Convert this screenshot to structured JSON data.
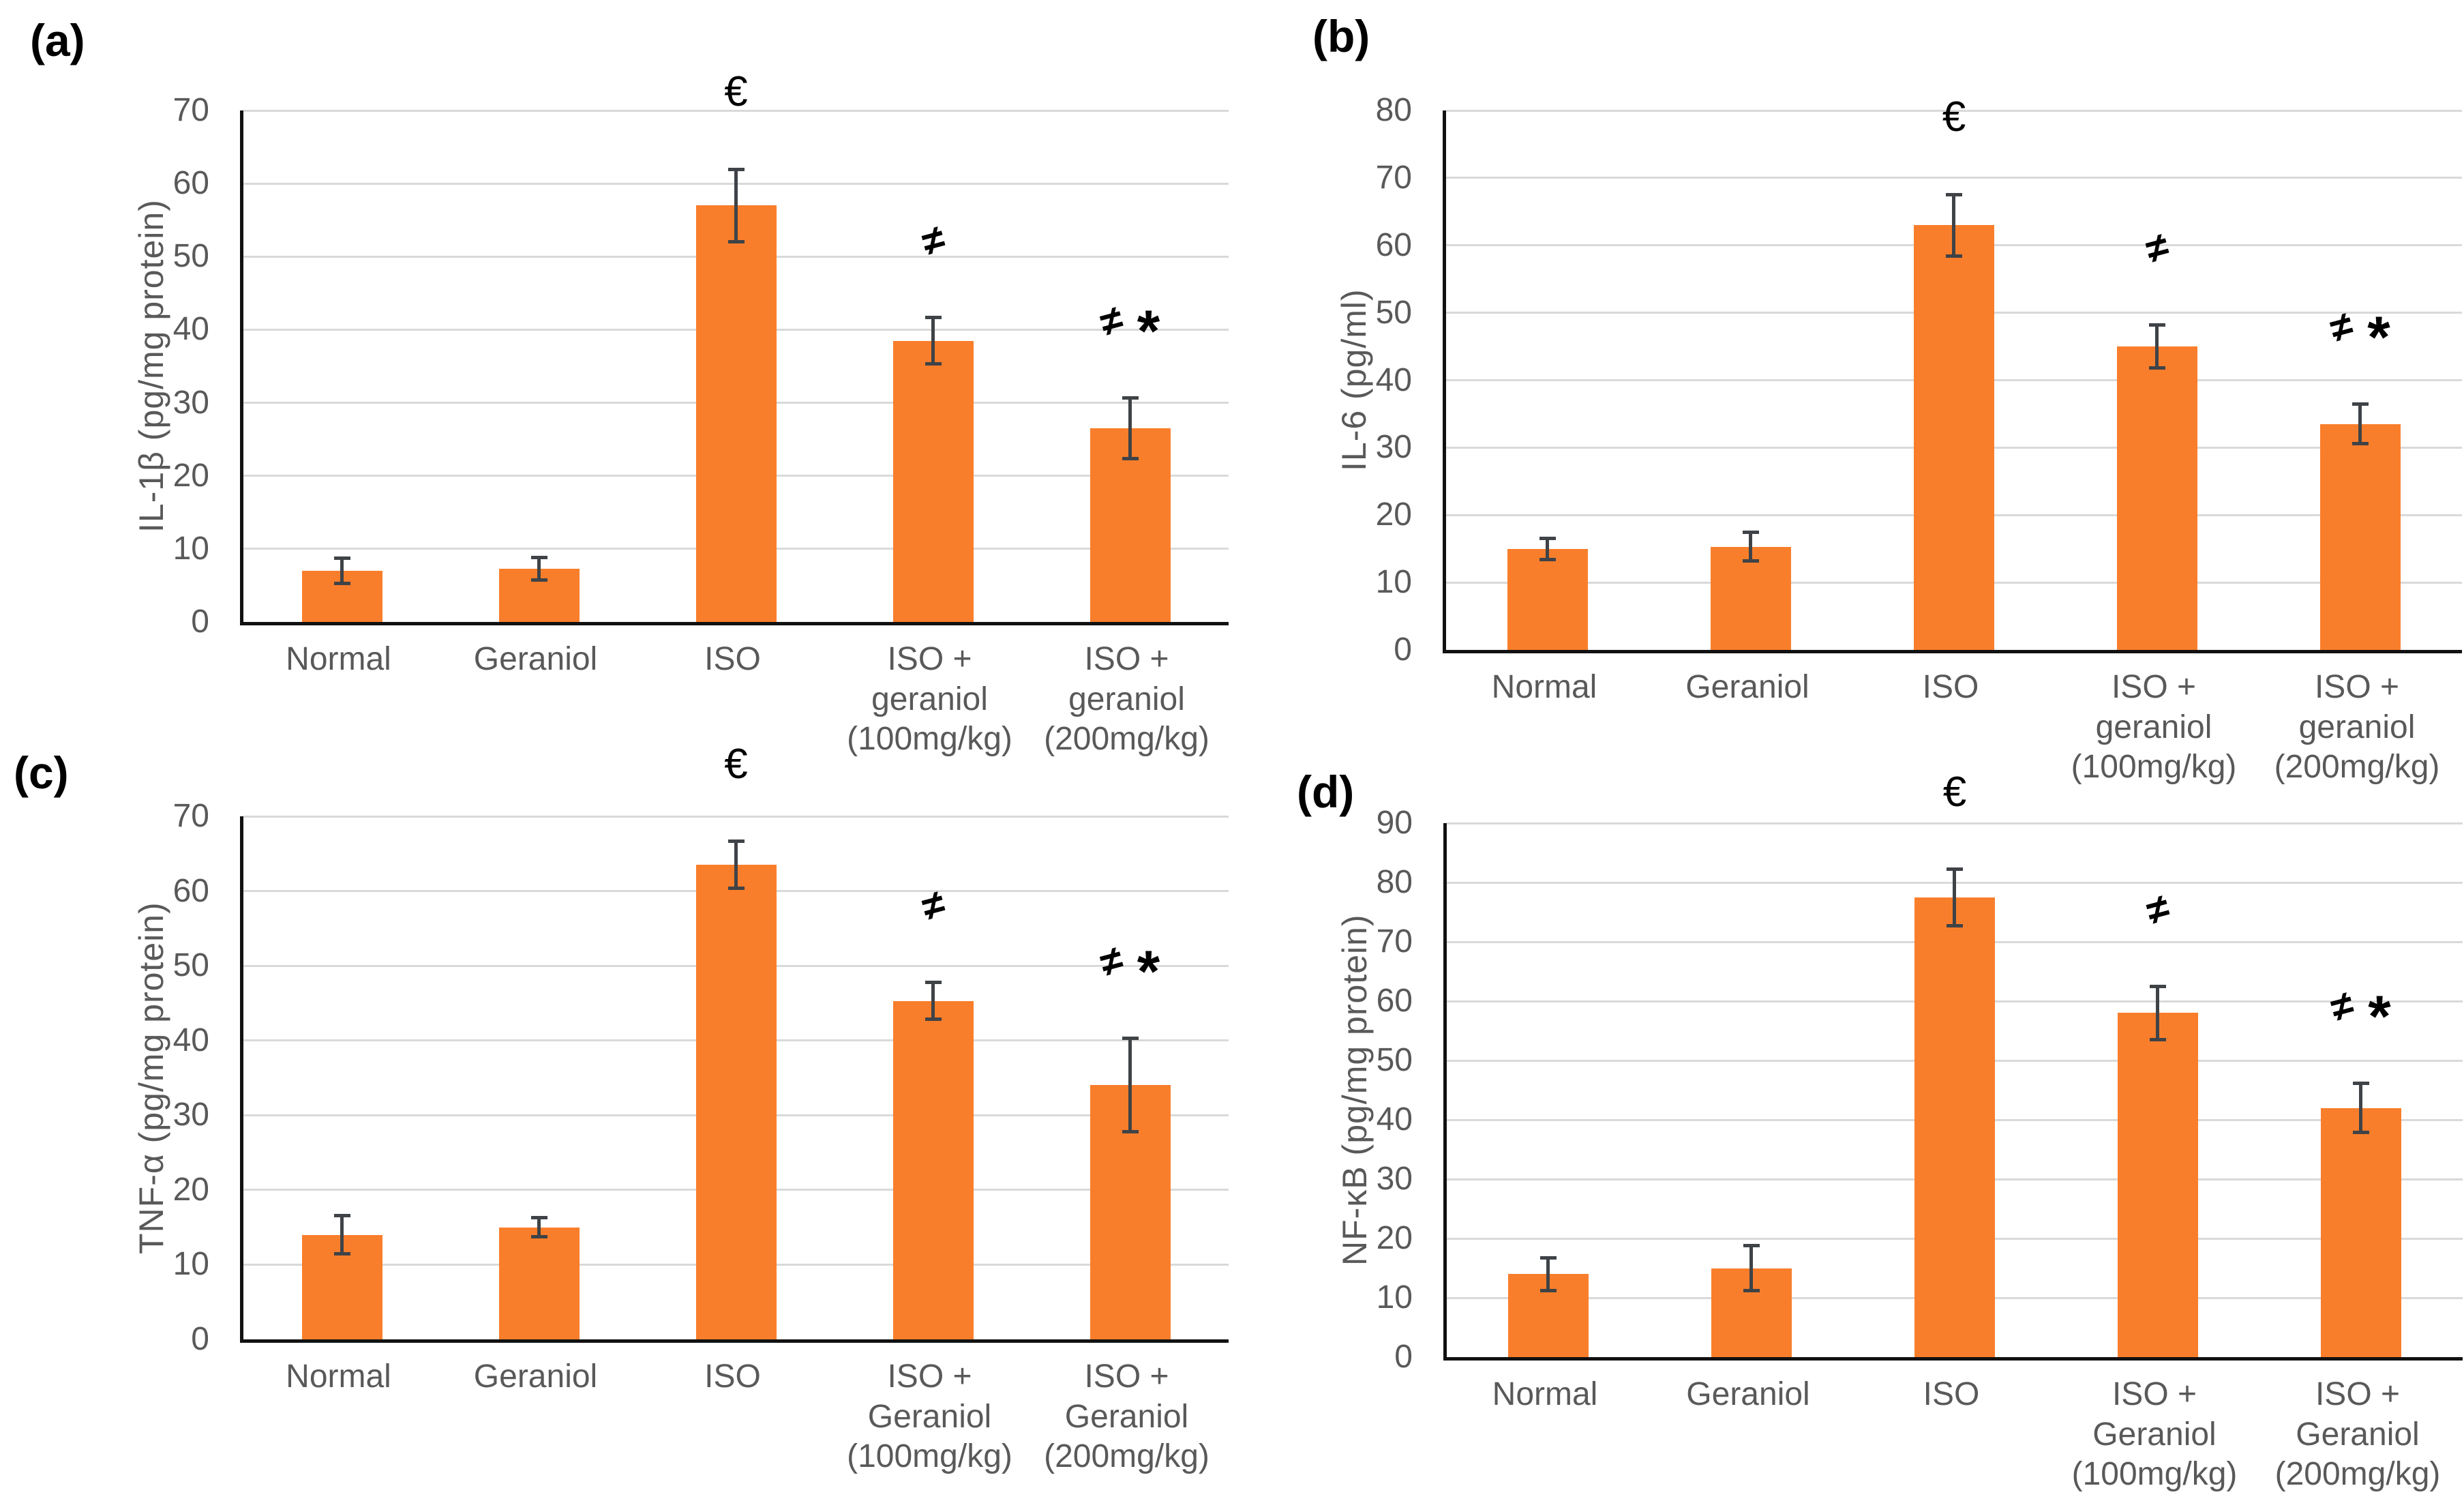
{
  "style": {
    "bar_color": "#F97E2B",
    "gridline_color": "#D9D9D9",
    "axis_color": "#111111",
    "tick_label_color": "#595959",
    "category_label_color": "#595959",
    "axis_title_color": "#595959",
    "error_bar_color": "#3F4347",
    "annotation_color": "#000000",
    "background": "#FFFFFF"
  },
  "chart_data": [
    {
      "type": "bar",
      "panel_label": "(a)",
      "title": "",
      "xlabel": "",
      "ylabel": "IL-1β (pg/mg protein)",
      "ylim": [
        0,
        70
      ],
      "yticks": [
        0,
        10,
        20,
        30,
        40,
        50,
        60,
        70
      ],
      "categories": [
        "Normal",
        "Geraniol",
        "ISO",
        "ISO +\ngeraniol\n(100mg/kg)",
        "ISO +\ngeraniol\n(200mg/kg)"
      ],
      "values": [
        7,
        7.3,
        57,
        38.5,
        26.5
      ],
      "errors": [
        1.8,
        1.6,
        5,
        3.2,
        4.2
      ],
      "annotations": [
        [],
        [],
        [
          "€"
        ],
        [
          "≠"
        ],
        [
          "≠",
          "*"
        ]
      ],
      "grid": true,
      "legend": "none"
    },
    {
      "type": "bar",
      "panel_label": "(b)",
      "title": "",
      "xlabel": "",
      "ylabel": "IL-6 (pg/ml)",
      "ylim": [
        0,
        80
      ],
      "yticks": [
        0,
        10,
        20,
        30,
        40,
        50,
        60,
        70,
        80
      ],
      "categories": [
        "Normal",
        "Geraniol",
        "ISO",
        "ISO +\ngeraniol\n(100mg/kg)",
        "ISO +\ngeraniol\n(200mg/kg)"
      ],
      "values": [
        15,
        15.3,
        63,
        45,
        33.5
      ],
      "errors": [
        1.6,
        2.2,
        4.6,
        3.2,
        3
      ],
      "annotations": [
        [],
        [],
        [
          "€"
        ],
        [
          "≠"
        ],
        [
          "≠",
          "*"
        ]
      ],
      "grid": true,
      "legend": "none"
    },
    {
      "type": "bar",
      "panel_label": "(c)",
      "title": "",
      "xlabel": "",
      "ylabel": "TNF-α (pg/mg protein)",
      "ylim": [
        0,
        70
      ],
      "yticks": [
        0,
        10,
        20,
        30,
        40,
        50,
        60,
        70
      ],
      "categories": [
        "Normal",
        "Geraniol",
        "ISO",
        "ISO +\nGeraniol\n(100mg/kg)",
        "ISO +\nGeraniol\n(200mg/kg)"
      ],
      "values": [
        14,
        15,
        63.5,
        45.3,
        34
      ],
      "errors": [
        2.6,
        1.3,
        3.2,
        2.5,
        6.3
      ],
      "annotations": [
        [],
        [],
        [
          "€"
        ],
        [
          "≠"
        ],
        [
          "≠",
          "*"
        ]
      ],
      "grid": true,
      "legend": "none"
    },
    {
      "type": "bar",
      "panel_label": "(d)",
      "title": "",
      "xlabel": "",
      "ylabel": "NF-κB (pg/mg protein)",
      "ylim": [
        0,
        90
      ],
      "yticks": [
        0,
        10,
        20,
        30,
        40,
        50,
        60,
        70,
        80,
        90
      ],
      "categories": [
        "Normal",
        "Geraniol",
        "ISO",
        "ISO +\nGeraniol\n(100mg/kg)",
        "ISO +\nGeraniol\n(200mg/kg)"
      ],
      "values": [
        14,
        15,
        77.5,
        58,
        42
      ],
      "errors": [
        2.8,
        3.9,
        4.8,
        4.5,
        4.2
      ],
      "annotations": [
        [],
        [],
        [
          "€"
        ],
        [
          "≠"
        ],
        [
          "≠",
          "*"
        ]
      ],
      "grid": true,
      "legend": "none"
    }
  ]
}
